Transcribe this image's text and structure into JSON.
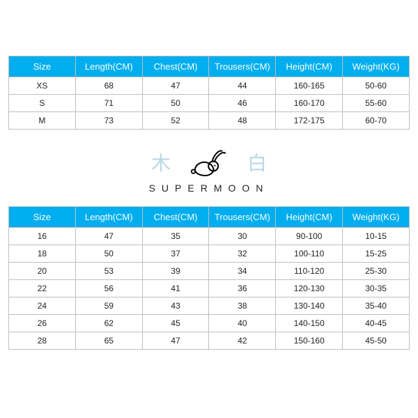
{
  "colors": {
    "header_bg": "#00aeef",
    "header_text": "#ffffff",
    "cell_border": "#bfbfbf",
    "cell_text": "#222222",
    "cjk_text": "#b9d8e8",
    "logo_stroke": "#000000"
  },
  "columns": [
    "Size",
    "Length(CM)",
    "Chest(CM)",
    "Trousers(CM)",
    "Height(CM)",
    "Weight(KG)"
  ],
  "adult_table": {
    "rows": [
      [
        "XS",
        "68",
        "47",
        "44",
        "160-165",
        "50-60"
      ],
      [
        "S",
        "71",
        "50",
        "46",
        "160-170",
        "55-60"
      ],
      [
        "M",
        "73",
        "52",
        "48",
        "172-175",
        "60-70"
      ]
    ]
  },
  "brand": {
    "left_char": "木",
    "right_char": "白",
    "name": "SUPERMOON"
  },
  "kids_table": {
    "rows": [
      [
        "16",
        "47",
        "35",
        "30",
        "90-100",
        "10-15"
      ],
      [
        "18",
        "50",
        "37",
        "32",
        "100-110",
        "15-25"
      ],
      [
        "20",
        "53",
        "39",
        "34",
        "110-120",
        "25-30"
      ],
      [
        "22",
        "56",
        "41",
        "36",
        "120-130",
        "30-35"
      ],
      [
        "24",
        "59",
        "43",
        "38",
        "130-140",
        "35-40"
      ],
      [
        "26",
        "62",
        "45",
        "40",
        "140-150",
        "40-45"
      ],
      [
        "28",
        "65",
        "47",
        "42",
        "150-160",
        "45-50"
      ]
    ]
  }
}
